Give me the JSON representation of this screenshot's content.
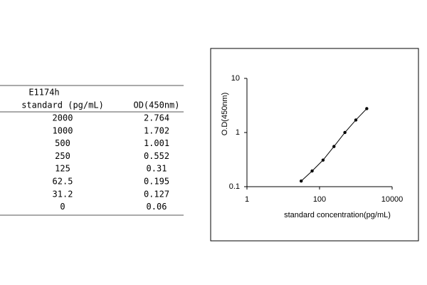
{
  "table": {
    "title": "E1174h",
    "columns": [
      "standard (pg/mL)",
      "OD(450nm)"
    ],
    "rows": [
      [
        "2000",
        "2.764"
      ],
      [
        "1000",
        "1.702"
      ],
      [
        "500",
        "1.001"
      ],
      [
        "250",
        "0.552"
      ],
      [
        "125",
        "0.31"
      ],
      [
        "62.5",
        "0.195"
      ],
      [
        "31.2",
        "0.127"
      ],
      [
        "0",
        "0.06"
      ]
    ]
  },
  "chart_data": {
    "type": "line",
    "markers": true,
    "log_x": true,
    "log_y": true,
    "color": "#000000",
    "x_label": "standard concentration(pg/mL)",
    "y_label": "O.D(450nm)",
    "x": [
      31.2,
      62.5,
      125,
      250,
      500,
      1000,
      2000
    ],
    "values": [
      0.127,
      0.195,
      0.31,
      0.552,
      1.001,
      1.702,
      2.764
    ],
    "xlim": [
      1,
      10000
    ],
    "xticks": [
      1,
      100,
      10000
    ],
    "ylim": [
      0.1,
      10
    ],
    "yticks": [
      0.1,
      1,
      10
    ]
  }
}
